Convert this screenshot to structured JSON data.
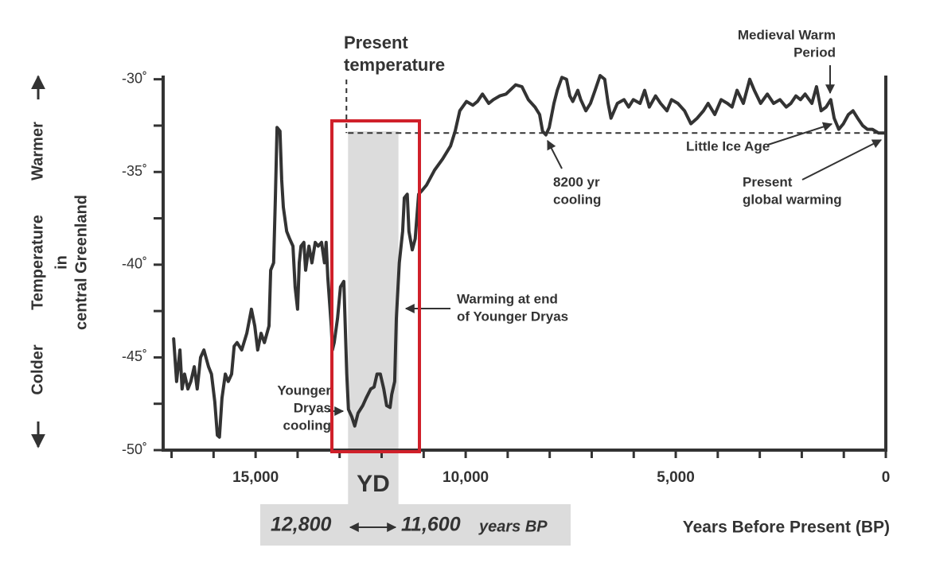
{
  "chart_data": {
    "type": "line",
    "color": "#333333",
    "xlim": [
      17200,
      0
    ],
    "ylim": [
      -50,
      -29.5
    ],
    "xticks": [
      {
        "value": 15000,
        "label": "15,000"
      },
      {
        "value": 10000,
        "label": "10,000"
      },
      {
        "value": 5000,
        "label": "5,000"
      },
      0
    ],
    "x_minor_ticks": [
      17000,
      16000,
      14000,
      13000,
      12000,
      11000,
      9000,
      8000,
      7000,
      6000,
      4000,
      3000,
      2000,
      1000
    ],
    "yticks": [
      {
        "value": -30,
        "label": "-30˚"
      },
      {
        "value": -35,
        "label": "-35˚"
      },
      {
        "value": -40,
        "label": "-40˚"
      },
      {
        "value": -45,
        "label": "-45˚"
      },
      {
        "value": -50,
        "label": "-50˚"
      }
    ],
    "y_minor_ticks": [
      -32.5,
      -37.5,
      -42.5,
      -47.5
    ],
    "x_label": "Years Before Present (BP)",
    "y_label_lines": [
      "Temperature",
      "in",
      "central Greenland"
    ],
    "warmer": "Warmer",
    "colder": "Colder",
    "present_temperature": -32.9,
    "yd_span": [
      12800,
      11600
    ],
    "yd_text": "YD",
    "yd_range": {
      "start": "12,800",
      "end": "11,600",
      "unit": "years BP"
    },
    "annotations": [
      {
        "lines": [
          "Present",
          "temperature"
        ]
      },
      {
        "lines": [
          "Medieval Warm",
          "Period"
        ]
      },
      {
        "lines": [
          "Little Ice Age"
        ]
      },
      {
        "lines": [
          "Present",
          "global warming"
        ]
      },
      {
        "lines": [
          "8200 yr",
          "cooling"
        ]
      },
      {
        "lines": [
          "Warming at end",
          "of Younger Dryas"
        ]
      },
      {
        "lines": [
          "Younger",
          "Dryas",
          "cooling"
        ]
      }
    ],
    "x": [
      16950,
      16880,
      16800,
      16750,
      16690,
      16610,
      16540,
      16460,
      16390,
      16310,
      16230,
      16120,
      16050,
      15970,
      15910,
      15860,
      15800,
      15720,
      15650,
      15570,
      15510,
      15440,
      15330,
      15210,
      15100,
      15020,
      14950,
      14870,
      14790,
      14680,
      14640,
      14570,
      14530,
      14490,
      14420,
      14380,
      14340,
      14260,
      14190,
      14110,
      14060,
      14000,
      13960,
      13920,
      13850,
      13810,
      13730,
      13660,
      13580,
      13510,
      13430,
      13360,
      13320,
      13280,
      13200,
      13170,
      13130,
      13050,
      12980,
      12900,
      12830,
      12790,
      12710,
      12640,
      12560,
      12450,
      12370,
      12260,
      12180,
      12110,
      12030,
      11950,
      11880,
      11800,
      11760,
      11690,
      11650,
      11580,
      11500,
      11460,
      11390,
      11350,
      11270,
      11200,
      11120,
      11040,
      10930,
      10740,
      10550,
      10360,
      10250,
      10140,
      9980,
      9830,
      9720,
      9600,
      9450,
      9340,
      9190,
      9040,
      8810,
      8660,
      8510,
      8350,
      8240,
      8170,
      8090,
      8010,
      7900,
      7820,
      7710,
      7600,
      7520,
      7450,
      7330,
      7260,
      7140,
      7030,
      6920,
      6800,
      6690,
      6610,
      6540,
      6390,
      6230,
      6120,
      6010,
      5850,
      5740,
      5630,
      5480,
      5360,
      5210,
      5100,
      4950,
      4790,
      4640,
      4490,
      4340,
      4230,
      4070,
      3920,
      3770,
      3660,
      3540,
      3390,
      3240,
      3130,
      2980,
      2820,
      2670,
      2520,
      2370,
      2260,
      2140,
      2030,
      1920,
      1760,
      1650,
      1540,
      1420,
      1310,
      1230,
      1120,
      1010,
      890,
      780,
      670,
      550,
      440,
      320,
      170,
      20
    ],
    "values": [
      -44.0,
      -46.3,
      -44.6,
      -46.7,
      -45.9,
      -46.7,
      -46.3,
      -45.5,
      -46.7,
      -45.0,
      -44.6,
      -45.5,
      -45.9,
      -47.4,
      -49.2,
      -49.3,
      -47.2,
      -45.9,
      -46.3,
      -45.9,
      -44.4,
      -44.2,
      -44.6,
      -43.7,
      -42.4,
      -43.3,
      -44.6,
      -43.7,
      -44.2,
      -43.3,
      -40.3,
      -39.9,
      -36.4,
      -32.6,
      -32.8,
      -35.4,
      -36.9,
      -38.2,
      -38.6,
      -39.0,
      -41.2,
      -42.4,
      -39.9,
      -39.0,
      -38.8,
      -40.3,
      -39.0,
      -39.9,
      -38.8,
      -39.0,
      -38.8,
      -39.9,
      -38.8,
      -40.7,
      -43.3,
      -44.6,
      -44.2,
      -42.9,
      -41.2,
      -40.9,
      -45.9,
      -47.8,
      -48.2,
      -48.7,
      -48.0,
      -47.6,
      -47.2,
      -46.7,
      -46.6,
      -45.9,
      -45.9,
      -46.7,
      -47.6,
      -47.7,
      -47.0,
      -46.3,
      -42.9,
      -39.9,
      -38.2,
      -36.4,
      -36.2,
      -38.2,
      -39.2,
      -38.6,
      -36.2,
      -36.0,
      -35.7,
      -34.9,
      -34.3,
      -33.6,
      -32.8,
      -31.7,
      -31.2,
      -31.4,
      -31.2,
      -30.8,
      -31.3,
      -31.1,
      -30.9,
      -30.8,
      -30.3,
      -30.4,
      -31.1,
      -31.5,
      -31.9,
      -32.8,
      -33.0,
      -32.6,
      -31.3,
      -30.6,
      -29.9,
      -30.0,
      -30.9,
      -31.2,
      -30.6,
      -31.1,
      -31.7,
      -31.3,
      -30.6,
      -29.8,
      -30.0,
      -31.3,
      -32.1,
      -31.3,
      -31.1,
      -31.5,
      -31.1,
      -31.3,
      -30.6,
      -31.5,
      -30.9,
      -31.3,
      -31.7,
      -31.1,
      -31.3,
      -31.7,
      -32.4,
      -32.1,
      -31.7,
      -31.3,
      -31.9,
      -31.1,
      -31.3,
      -31.5,
      -30.6,
      -31.3,
      -30.0,
      -30.6,
      -31.3,
      -30.8,
      -31.3,
      -31.1,
      -31.5,
      -31.3,
      -30.9,
      -31.1,
      -30.8,
      -31.3,
      -30.4,
      -31.7,
      -31.5,
      -31.1,
      -32.1,
      -32.7,
      -32.4,
      -31.9,
      -31.7,
      -32.1,
      -32.5,
      -32.7,
      -32.7,
      -32.9,
      -32.9
    ]
  }
}
